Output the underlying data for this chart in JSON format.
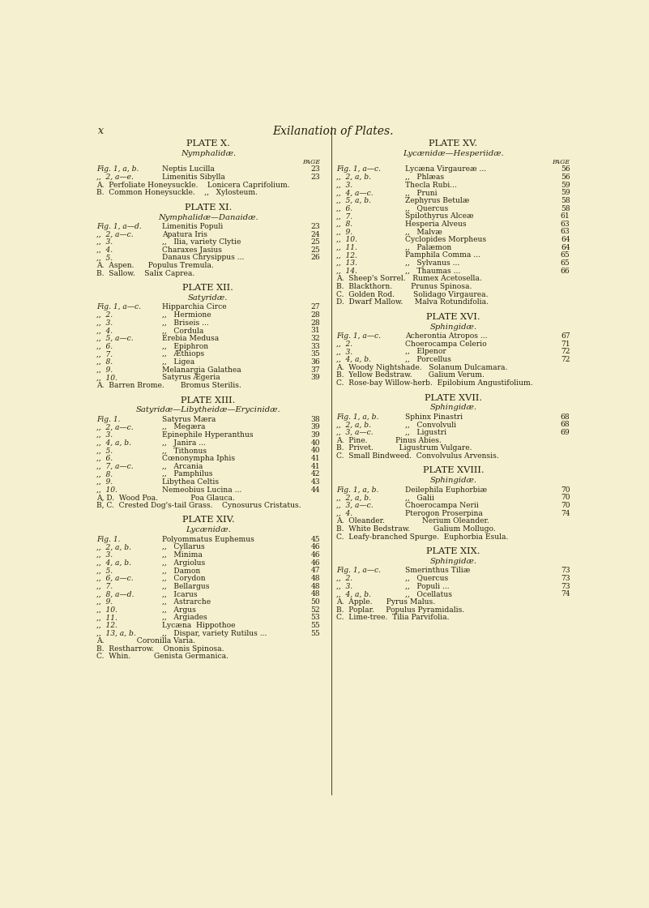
{
  "bg_color": "#f5f0d0",
  "text_color": "#2a1f0e",
  "page_header_italic": "x",
  "page_title": "Exilanation of Plates.",
  "left_col": [
    {
      "type": "plate_title",
      "text": "PLATE X."
    },
    {
      "type": "subtitle",
      "text": "Nymphalidæ."
    },
    {
      "type": "col_header",
      "right": "PAGE"
    },
    {
      "type": "entry",
      "prefix": "Fig. 1, a, b.",
      "name": "Neptis Lucilla",
      "dots": "...   ...   -   ...",
      "page": "23"
    },
    {
      "type": "entry",
      "prefix": ",,  2, a—e.",
      "name": "Limenitis Sibylla",
      "dots": "...   ...       ..",
      "page": "23"
    },
    {
      "type": "plant",
      "text": "A.  Perfoliate Honeysuckle.    Lonicera Caprifolium."
    },
    {
      "type": "plant",
      "text": "B.  Common Honeysuckle.    ,,   Xylosteum."
    },
    {
      "type": "spacer"
    },
    {
      "type": "plate_title",
      "text": "PLATE XI."
    },
    {
      "type": "subtitle",
      "text": "Nymphalidæ—Danaidæ."
    },
    {
      "type": "entry",
      "prefix": "Fig. 1, a—d.",
      "name": "Limenitis Populi",
      "dots": "...   ..   ...",
      "page": "23"
    },
    {
      "type": "entry",
      "prefix": ",,  2, a—c.",
      "name": "Apatura Iris",
      "dots": "...   ..   ...   ...",
      "page": "24"
    },
    {
      "type": "entry",
      "prefix": ",,  3.",
      "name": ",,   Ilia, variety Clytie",
      "dots": "...   ..",
      "page": "25"
    },
    {
      "type": "entry",
      "prefix": ",,  4.",
      "name": "Charaxes Jasius",
      "dots": "...   ...   ...   ...",
      "page": "25"
    },
    {
      "type": "entry",
      "prefix": ",,  5.",
      "name": "Danaus Chrysippus ...",
      "dots": "...   ...   ...",
      "page": "26"
    },
    {
      "type": "plant",
      "text": "A.  Aspen.      Populus Tremula."
    },
    {
      "type": "plant",
      "text": "B.  Sallow.    Salix Caprea."
    },
    {
      "type": "spacer"
    },
    {
      "type": "plate_title",
      "text": "PLATE XII."
    },
    {
      "type": "subtitle",
      "text": "Satyridæ."
    },
    {
      "type": "entry",
      "prefix": "Fig. 1, a—c.",
      "name": "Hipparchia Circe",
      "dots": "...   ...   ...   ...",
      "page": "27"
    },
    {
      "type": "entry",
      "prefix": ",,  2.",
      "name": ",,   Hermione",
      "dots": "..   ..   ...",
      "page": "28"
    },
    {
      "type": "entry",
      "prefix": ",,  3.",
      "name": ",,   Briseis ...",
      "dots": "...   ...   ...",
      "page": "28"
    },
    {
      "type": "entry",
      "prefix": ",,  4.",
      "name": ",,   Cordula",
      "dots": "...   ..   ...",
      "page": "31"
    },
    {
      "type": "entry",
      "prefix": ",,  5, a—c.",
      "name": "Erebia Medusa",
      "dots": "...   ...   ...   ...",
      "page": "32"
    },
    {
      "type": "entry",
      "prefix": ",,  6.",
      "name": ",,   Epiphron",
      "dots": "...   ...   ...",
      "page": "33"
    },
    {
      "type": "entry",
      "prefix": ",,  7.",
      "name": ",,   Æthiops",
      "dots": "...   ...   ...   ...",
      "page": "35"
    },
    {
      "type": "entry",
      "prefix": ",,  8.",
      "name": ",,   Ligea",
      "dots": "...   ...   ...   ...",
      "page": "36"
    },
    {
      "type": "entry",
      "prefix": ",,  9.",
      "name": "Melanargia Galathea",
      "dots": "...   ...   ...",
      "page": "37"
    },
    {
      "type": "entry",
      "prefix": ",,  10.",
      "name": "Satyrus Ægeria",
      "dots": "...   ...   ...   ...",
      "page": "39"
    },
    {
      "type": "plant",
      "text": "A.  Barren Brome.       Bromus Sterilis."
    },
    {
      "type": "spacer"
    },
    {
      "type": "plate_title",
      "text": "PLATE XIII."
    },
    {
      "type": "subtitle",
      "text": "Satyridæ—Libytheidæ—Erycinidæ."
    },
    {
      "type": "entry",
      "prefix": "Fig. 1.",
      "name": "Satyrus Mæra",
      "dots": "...   ...   ...   ...",
      "page": "38"
    },
    {
      "type": "entry",
      "prefix": ",,  2, a—c.",
      "name": ",,   Megæra",
      "dots": "...   ...   ...   ...",
      "page": "39"
    },
    {
      "type": "entry",
      "prefix": ",,  3.",
      "name": "Epinephile Hyperanthus",
      "dots": "...   ...   ...",
      "page": "39"
    },
    {
      "type": "entry",
      "prefix": ",,  4, a, b.",
      "name": ",,   Janira ...",
      "dots": "...   ...   ...",
      "page": "40"
    },
    {
      "type": "entry",
      "prefix": ",,  5.",
      "name": ",,   Tithonus",
      "dots": "...   ...   ...",
      "page": "40"
    },
    {
      "type": "entry",
      "prefix": ",,  6.",
      "name": "Cœnonympha Iphis",
      "dots": "...   ...   ...",
      "page": "41"
    },
    {
      "type": "entry",
      "prefix": ",,  7, a—c.",
      "name": ",,   Arcania",
      "dots": "...   ...   ...",
      "page": "41"
    },
    {
      "type": "entry",
      "prefix": ",,  8.",
      "name": ",,   Pamphilus",
      "dots": "...   ...   ...",
      "page": "42"
    },
    {
      "type": "entry",
      "prefix": ",,  9.",
      "name": "Libythea Celtis",
      "dots": "...   ...   ...   ...",
      "page": "43"
    },
    {
      "type": "entry",
      "prefix": ",,  10.",
      "name": "Nemeobius Lucina ...",
      "dots": "...   ...   ...",
      "page": "44"
    },
    {
      "type": "plant",
      "text": "A, D.  Wood Poa.              Poa Glauca."
    },
    {
      "type": "plant",
      "text": "B, C.  Crested Dog's-tail Grass.    Cynosurus Cristatus."
    },
    {
      "type": "spacer"
    },
    {
      "type": "plate_title",
      "text": "PLATE XIV."
    },
    {
      "type": "subtitle",
      "text": "Lycænidæ."
    },
    {
      "type": "entry",
      "prefix": "Fig. 1.",
      "name": "Polyommatus Euphemus",
      "dots": "...   ...   ...",
      "page": "45"
    },
    {
      "type": "entry",
      "prefix": ",,  2, a, b.",
      "name": ",,   Cyllarus",
      "dots": "...   ...   ...",
      "page": "46"
    },
    {
      "type": "entry",
      "prefix": ",,  3.",
      "name": ",,   Minima",
      "dots": "...   ...   ...",
      "page": "46"
    },
    {
      "type": "entry",
      "prefix": ",,  4, a, b.",
      "name": ",,   Argiolus",
      "dots": "...   ...   ...",
      "page": "46"
    },
    {
      "type": "entry",
      "prefix": ",,  5.",
      "name": ",,   Damon",
      "dots": "...   ...   ...",
      "page": "47"
    },
    {
      "type": "entry",
      "prefix": ",,  6, a—c.",
      "name": ",,   Corydon",
      "dots": "...   ...   ...",
      "page": "48"
    },
    {
      "type": "entry",
      "prefix": ",,  7.",
      "name": ",,   Bellargus",
      "dots": "...   ...   ...",
      "page": "48"
    },
    {
      "type": "entry",
      "prefix": ",,  8, a—d.",
      "name": ",,   Icarus",
      "dots": "...   ...   ...",
      "page": "48"
    },
    {
      "type": "entry",
      "prefix": ",,  9.",
      "name": ",,   Astrarche",
      "dots": "...   ...   ...",
      "page": "50"
    },
    {
      "type": "entry",
      "prefix": ",,  10.",
      "name": ",,   Argus",
      "dots": "...   ...   ...",
      "page": "52"
    },
    {
      "type": "entry",
      "prefix": ",,  11.",
      "name": ",,   Argiades",
      "dots": "...   ...   ...",
      "page": "53"
    },
    {
      "type": "entry",
      "prefix": ",,  12.",
      "name": "Lycæna  Hippothoe",
      "dots": "...   ...   ...",
      "page": "55"
    },
    {
      "type": "entry",
      "prefix": ",,  13, a, b.",
      "name": ",,   Dispar, variety Rutilus ...",
      "dots": "...",
      "page": "55"
    },
    {
      "type": "plant",
      "text": "A.              Coronilla Varia."
    },
    {
      "type": "plant",
      "text": "B.  Restharrow.    Ononis Spinosa."
    },
    {
      "type": "plant",
      "text": "C.  Whin.          Genista Germanica."
    }
  ],
  "right_col": [
    {
      "type": "plate_title",
      "text": "PLATE XV."
    },
    {
      "type": "subtitle",
      "text": "Lycænidæ—Hesperiidæ."
    },
    {
      "type": "col_header",
      "right": "PAGE"
    },
    {
      "type": "entry",
      "prefix": "Fig. 1, a—c.",
      "name": "Lycæna Virgaureæ ...",
      "dots": "...   ...   ...",
      "page": "56"
    },
    {
      "type": "entry",
      "prefix": ",,  2, a, b.",
      "name": ",,   Phlæas",
      "dots": "...   ...   ...",
      "page": "56"
    },
    {
      "type": "entry",
      "prefix": ",,  3.",
      "name": "Thecla Rubi...",
      "dots": "...   ...   ...",
      "page": "59"
    },
    {
      "type": "entry",
      "prefix": ",,  4, a—c.",
      "name": ",,   Pruni",
      "dots": "...   ...   ...",
      "page": "59"
    },
    {
      "type": "entry",
      "prefix": ",,  5, a, b.",
      "name": "Zephyrus Betulæ",
      "dots": "...   ...   ...",
      "page": "58"
    },
    {
      "type": "entry",
      "prefix": ",,  6.",
      "name": ",,   Quercus",
      "dots": "...   ...   ...",
      "page": "58"
    },
    {
      "type": "entry",
      "prefix": ",,  7.",
      "name": "Spilothyrus Alceæ",
      "dots": "...   ...   ...",
      "page": "61"
    },
    {
      "type": "entry",
      "prefix": ",,  8.",
      "name": "Hesperia Alveus",
      "dots": "...   ...   ...",
      "page": "63"
    },
    {
      "type": "entry",
      "prefix": ",,  9.",
      "name": ",,   Malvæ",
      "dots": "...   ...   ...",
      "page": "63"
    },
    {
      "type": "entry",
      "prefix": ",,  10.",
      "name": "Cyclopides Morpheus",
      "dots": "...   ...   ...",
      "page": "64"
    },
    {
      "type": "entry",
      "prefix": ",,  11.",
      "name": ",,   Palæmon",
      "dots": "...   ...",
      "page": "64"
    },
    {
      "type": "entry",
      "prefix": ",,  12.",
      "name": "Pamphila Comma ...",
      "dots": "...   ...",
      "page": "65"
    },
    {
      "type": "entry",
      "prefix": ",,  13.",
      "name": ",,   Sylvanus ...",
      "dots": "...   ...",
      "page": "65"
    },
    {
      "type": "entry",
      "prefix": ",,  14.",
      "name": ",,   Thaumas ...",
      "dots": "...   ...",
      "page": "66"
    },
    {
      "type": "plant",
      "text": "A.  Sheep's Sorrel.   Rumex Acetosella."
    },
    {
      "type": "plant",
      "text": "B.  Blackthorn.        Prunus Spinosa."
    },
    {
      "type": "plant",
      "text": "C.  Golden Rod.        Solidago Virgaurea."
    },
    {
      "type": "plant",
      "text": "D.  Dwarf Mallow.     Malva Rotundifolia."
    },
    {
      "type": "spacer"
    },
    {
      "type": "plate_title",
      "text": "PLATE XVI."
    },
    {
      "type": "subtitle",
      "text": "Sphingidæ."
    },
    {
      "type": "entry",
      "prefix": "Fig. 1, a—c.",
      "name": "Acherontia Atropos ...",
      "dots": "...   ...   ...",
      "page": "67"
    },
    {
      "type": "entry",
      "prefix": ",,  2.",
      "name": "Choerocampa Celerio",
      "dots": "...   ...   ...",
      "page": "71"
    },
    {
      "type": "entry",
      "prefix": ",,  3.",
      "name": ",,   Elpenor",
      "dots": "...   ...   ...",
      "page": "72"
    },
    {
      "type": "entry",
      "prefix": ",,  4, a, b.",
      "name": ",,   Porcellus",
      "dots": "...   ...   ...",
      "page": "72"
    },
    {
      "type": "plant",
      "text": "A.  Woody Nightshade.   Solanum Dulcamara."
    },
    {
      "type": "plant",
      "text": "B.  Yellow Bedstraw.       Galium Verum."
    },
    {
      "type": "plant",
      "text": "C.  Rose-bay Willow-herb.  Epilobium Angustifolium."
    },
    {
      "type": "spacer"
    },
    {
      "type": "plate_title",
      "text": "PLATE XVII."
    },
    {
      "type": "subtitle",
      "text": "Sphingidæ."
    },
    {
      "type": "entry",
      "prefix": "Fig. 1, a, b.",
      "name": "Sphinx Pinastri",
      "dots": "...   ...   ...",
      "page": "68"
    },
    {
      "type": "entry",
      "prefix": ",,  2, a, b.",
      "name": ",,   Convolvuli",
      "dots": "...   ...   ...",
      "page": "68"
    },
    {
      "type": "entry",
      "prefix": ",,  3, a—c.",
      "name": ",,   Ligustri",
      "dots": "...   ...   ...",
      "page": "69"
    },
    {
      "type": "plant",
      "text": "A.  Pine.            Pinus Abies."
    },
    {
      "type": "plant",
      "text": "B.  Privet.           Ligustrum Vulgare."
    },
    {
      "type": "plant",
      "text": "C.  Small Bindweed.  Convolvulus Arvensis."
    },
    {
      "type": "spacer"
    },
    {
      "type": "plate_title",
      "text": "PLATE XVIII."
    },
    {
      "type": "subtitle",
      "text": "Sphingidæ."
    },
    {
      "type": "entry",
      "prefix": "Fig. 1, a, b.",
      "name": "Deilephila Euphorbiæ",
      "dots": "...   ...   ...",
      "page": "70"
    },
    {
      "type": "entry",
      "prefix": ",,  2, a, b.",
      "name": ",,   Galii",
      "dots": "...   ...   ...",
      "page": "70"
    },
    {
      "type": "entry",
      "prefix": ",,  3, a—c.",
      "name": "Choerocampa Nerii",
      "dots": "...   ...   ...",
      "page": "70"
    },
    {
      "type": "entry",
      "prefix": ",,  4.",
      "name": "Pterogon Proserpina",
      "dots": "...   ...   ...",
      "page": "74"
    },
    {
      "type": "plant",
      "text": "A.  Oleander.                Nerium Oleander."
    },
    {
      "type": "plant",
      "text": "B.  White Bedstraw.          Galium Mollugo."
    },
    {
      "type": "plant",
      "text": "C.  Leafy-branched Spurge.  Euphorbia Esula."
    },
    {
      "type": "spacer"
    },
    {
      "type": "plate_title",
      "text": "PLATE XIX."
    },
    {
      "type": "subtitle",
      "text": "Sphingidæ."
    },
    {
      "type": "entry",
      "prefix": "Fig. 1, a—c.",
      "name": "Smerinthus Tiliæ",
      "dots": "...   ...   ...",
      "page": "73"
    },
    {
      "type": "entry",
      "prefix": ",,  2.",
      "name": ",,   Quercus",
      "dots": "...   ...",
      "page": "73"
    },
    {
      "type": "entry",
      "prefix": ",,  3.",
      "name": ",,   Populi ...",
      "dots": "...   ...",
      "page": "73"
    },
    {
      "type": "entry",
      "prefix": ",,  4, a, b.",
      "name": ",,   Ocellatus",
      "dots": "...   ...   ...",
      "page": "74"
    },
    {
      "type": "plant",
      "text": "A.  Apple.      Pyrus Malus."
    },
    {
      "type": "plant",
      "text": "B.  Poplar.     Populus Pyramidalis."
    },
    {
      "type": "plant",
      "text": "C.  Lime-tree.  Tilia Parvifolia."
    }
  ]
}
